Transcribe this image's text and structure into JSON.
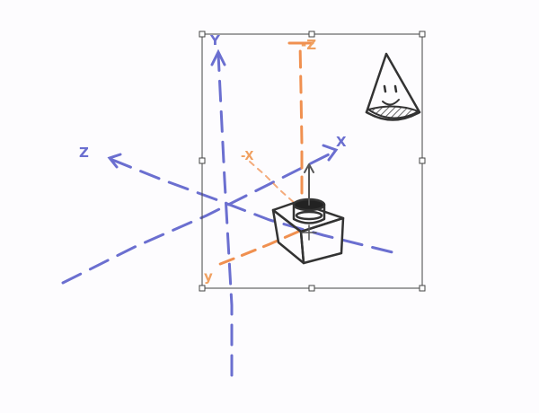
{
  "colors": {
    "background": "#fdfcfe",
    "world_axes": "#6b6fd0",
    "local_axes": "#f09050",
    "sketch": "#333333",
    "selection": "#444444"
  },
  "world_axes": {
    "y_label": "Y",
    "z_label": "Z",
    "x_label": "X"
  },
  "local_axes": {
    "z_label": "-Z",
    "x_label": "-X",
    "y_label": "y"
  },
  "objects": [
    {
      "type": "box",
      "icon": "box-sketch-icon"
    },
    {
      "type": "cone",
      "icon": "cone-sketch-icon"
    }
  ],
  "selection": {
    "handles": 8
  }
}
